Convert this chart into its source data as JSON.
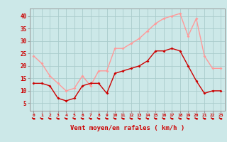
{
  "x": [
    0,
    1,
    2,
    3,
    4,
    5,
    6,
    7,
    8,
    9,
    10,
    11,
    12,
    13,
    14,
    15,
    16,
    17,
    18,
    19,
    20,
    21,
    22,
    23
  ],
  "wind_avg": [
    13,
    13,
    12,
    7,
    6,
    7,
    12,
    13,
    13,
    9,
    17,
    18,
    19,
    20,
    22,
    26,
    26,
    27,
    26,
    20,
    14,
    9,
    10,
    10
  ],
  "wind_gust": [
    24,
    21,
    16,
    13,
    10,
    11,
    16,
    12,
    18,
    18,
    27,
    27,
    29,
    31,
    34,
    37,
    39,
    40,
    41,
    32,
    39,
    24,
    19,
    19
  ],
  "bg_color": "#cce8e8",
  "grid_color": "#aacccc",
  "line_avg_color": "#cc0000",
  "line_gust_color": "#ff9999",
  "xlabel": "Vent moyen/en rafales ( km/h )",
  "yticks": [
    5,
    10,
    15,
    20,
    25,
    30,
    35,
    40
  ],
  "ylim": [
    2,
    43
  ],
  "xlim": [
    -0.5,
    23.5
  ]
}
